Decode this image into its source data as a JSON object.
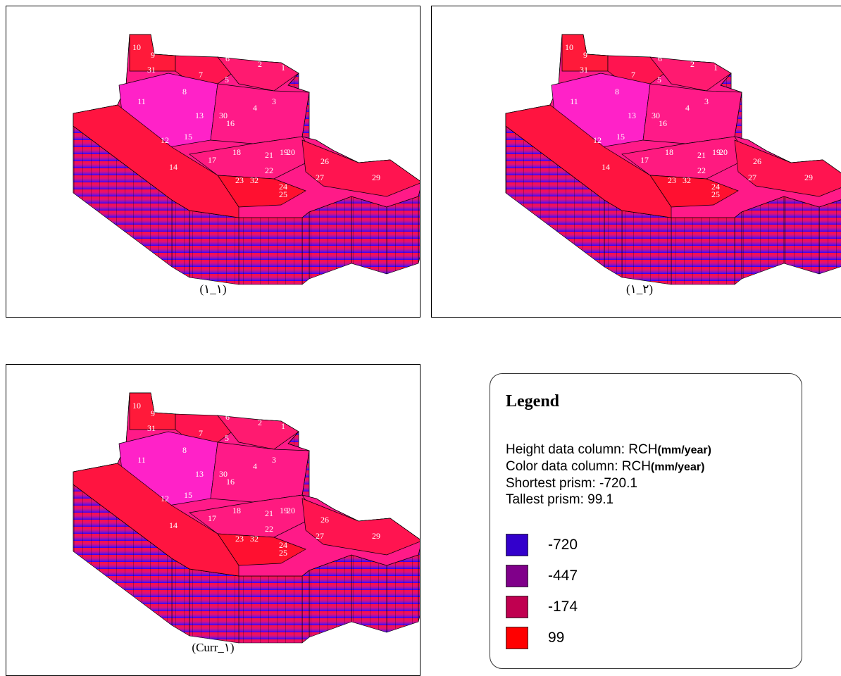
{
  "panels": [
    {
      "caption": "(١_١)",
      "labels": [
        "10",
        "9",
        "31",
        "6",
        "2",
        "1",
        "7",
        "5",
        "8",
        "3",
        "11",
        "4",
        "13",
        "30",
        "16",
        "12",
        "15",
        "17",
        "18",
        "21",
        "19",
        "20",
        "26",
        "14",
        "23",
        "32",
        "22",
        "24",
        "25",
        "27",
        "29"
      ]
    },
    {
      "caption": "(٢_١)",
      "labels": [
        "10",
        "9",
        "31",
        "6",
        "2",
        "1",
        "7",
        "5",
        "8",
        "3",
        "11",
        "4",
        "13",
        "30",
        "16",
        "12",
        "15",
        "17",
        "18",
        "21",
        "19",
        "20",
        "26",
        "14",
        "23",
        "32",
        "22",
        "24",
        "25",
        "27",
        "29"
      ]
    },
    {
      "caption": "(Curr_١)",
      "labels": [
        "10",
        "9",
        "31",
        "6",
        "2",
        "1",
        "7",
        "5",
        "8",
        "3",
        "11",
        "4",
        "13",
        "30",
        "16",
        "12",
        "15",
        "17",
        "18",
        "21",
        "19",
        "20",
        "26",
        "14",
        "23",
        "32",
        "22",
        "24",
        "25",
        "27",
        "29"
      ]
    }
  ],
  "legend": {
    "title": "Legend",
    "height_line": "Height data column: RCH",
    "height_unit": "(mm/year)",
    "color_line": "Color data column: RCH",
    "color_unit": "(mm/year)",
    "shortest": "Shortest prism: -720.1",
    "tallest": "Tallest prism: 99.1",
    "items": [
      {
        "label": "-720",
        "color": "#3300cc"
      },
      {
        "label": "-447",
        "color": "#80008a"
      },
      {
        "label": "-174",
        "color": "#c00050"
      },
      {
        "label": "99",
        "color": "#ff0000"
      }
    ]
  },
  "colors": {
    "top_pink": "#ff1a88",
    "top_magenta": "#ff22dd",
    "top_red": "#ff1030",
    "base_blue": "#2a00ff"
  }
}
